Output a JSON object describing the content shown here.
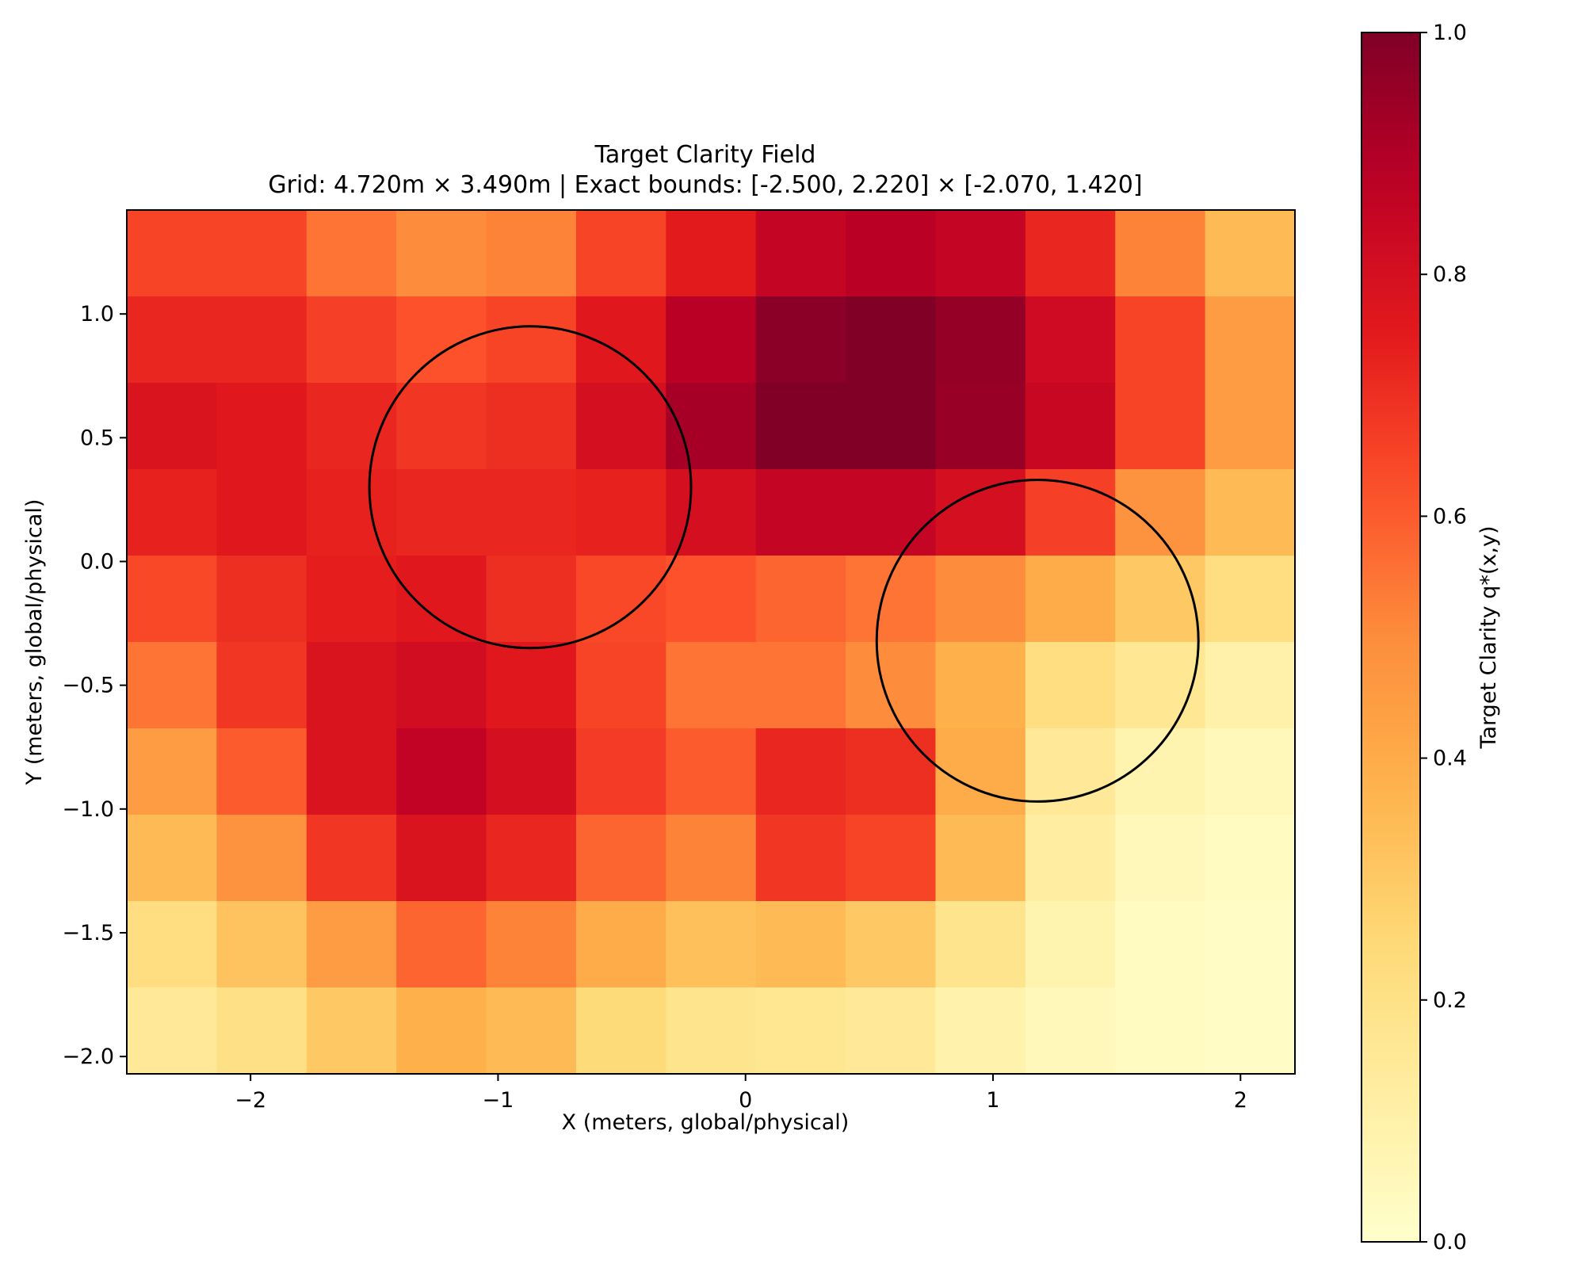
{
  "chart_data": {
    "type": "heatmap",
    "title": "Target Clarity Field",
    "subtitle": "Grid: 4.720m × 3.490m | Exact bounds: [-2.500, 2.220] × [-2.070, 1.420]",
    "xlabel": "X (meters, global/physical)",
    "ylabel": "Y (meters, global/physical)",
    "xlim": [
      -2.5,
      2.22
    ],
    "ylim": [
      -2.07,
      1.42
    ],
    "x_ticks": [
      -2,
      -1,
      0,
      1,
      2
    ],
    "x_tick_labels": [
      "−2",
      "−1",
      "0",
      "1",
      "2"
    ],
    "y_ticks": [
      -2.0,
      -1.5,
      -1.0,
      -0.5,
      0.0,
      0.5,
      1.0
    ],
    "y_tick_labels": [
      "−2.0",
      "−1.5",
      "−1.0",
      "−0.5",
      "0.0",
      "0.5",
      "1.0"
    ],
    "colormap": "YlOrRd",
    "colorbar": {
      "label": "Target Clarity q*(x,y)",
      "range": [
        0.0,
        1.0
      ],
      "ticks": [
        0.0,
        0.2,
        0.4,
        0.6,
        0.8,
        1.0
      ],
      "tick_labels": [
        "0.0",
        "0.2",
        "0.4",
        "0.6",
        "0.8",
        "1.0"
      ]
    },
    "grid_shape": {
      "rows": 10,
      "cols": 13
    },
    "values_top_to_bottom": [
      [
        0.65,
        0.65,
        0.55,
        0.5,
        0.52,
        0.65,
        0.75,
        0.85,
        0.88,
        0.85,
        0.72,
        0.52,
        0.35
      ],
      [
        0.72,
        0.72,
        0.66,
        0.62,
        0.65,
        0.76,
        0.88,
        0.98,
        1.0,
        0.96,
        0.82,
        0.65,
        0.45
      ],
      [
        0.78,
        0.76,
        0.72,
        0.68,
        0.7,
        0.8,
        0.92,
        1.0,
        1.0,
        0.95,
        0.84,
        0.65,
        0.45
      ],
      [
        0.73,
        0.76,
        0.73,
        0.72,
        0.72,
        0.73,
        0.8,
        0.85,
        0.85,
        0.8,
        0.66,
        0.48,
        0.35
      ],
      [
        0.64,
        0.7,
        0.74,
        0.76,
        0.7,
        0.64,
        0.62,
        0.58,
        0.55,
        0.5,
        0.4,
        0.3,
        0.22
      ],
      [
        0.55,
        0.68,
        0.78,
        0.81,
        0.76,
        0.65,
        0.55,
        0.55,
        0.5,
        0.38,
        0.22,
        0.16,
        0.1
      ],
      [
        0.45,
        0.6,
        0.78,
        0.86,
        0.8,
        0.67,
        0.6,
        0.72,
        0.7,
        0.4,
        0.15,
        0.08,
        0.05
      ],
      [
        0.35,
        0.48,
        0.68,
        0.78,
        0.72,
        0.58,
        0.52,
        0.68,
        0.65,
        0.35,
        0.12,
        0.05,
        0.03
      ],
      [
        0.22,
        0.32,
        0.45,
        0.58,
        0.52,
        0.4,
        0.33,
        0.35,
        0.3,
        0.18,
        0.08,
        0.03,
        0.02
      ],
      [
        0.15,
        0.2,
        0.3,
        0.38,
        0.35,
        0.24,
        0.18,
        0.17,
        0.15,
        0.09,
        0.05,
        0.03,
        0.02
      ]
    ],
    "circles": [
      {
        "center_x": -0.87,
        "center_y": 0.3,
        "radius": 0.65
      },
      {
        "center_x": 1.18,
        "center_y": -0.32,
        "radius": 0.65
      }
    ]
  },
  "colors": {
    "circle_stroke": "#000000",
    "bounds_dash": "#ff7f0e"
  }
}
